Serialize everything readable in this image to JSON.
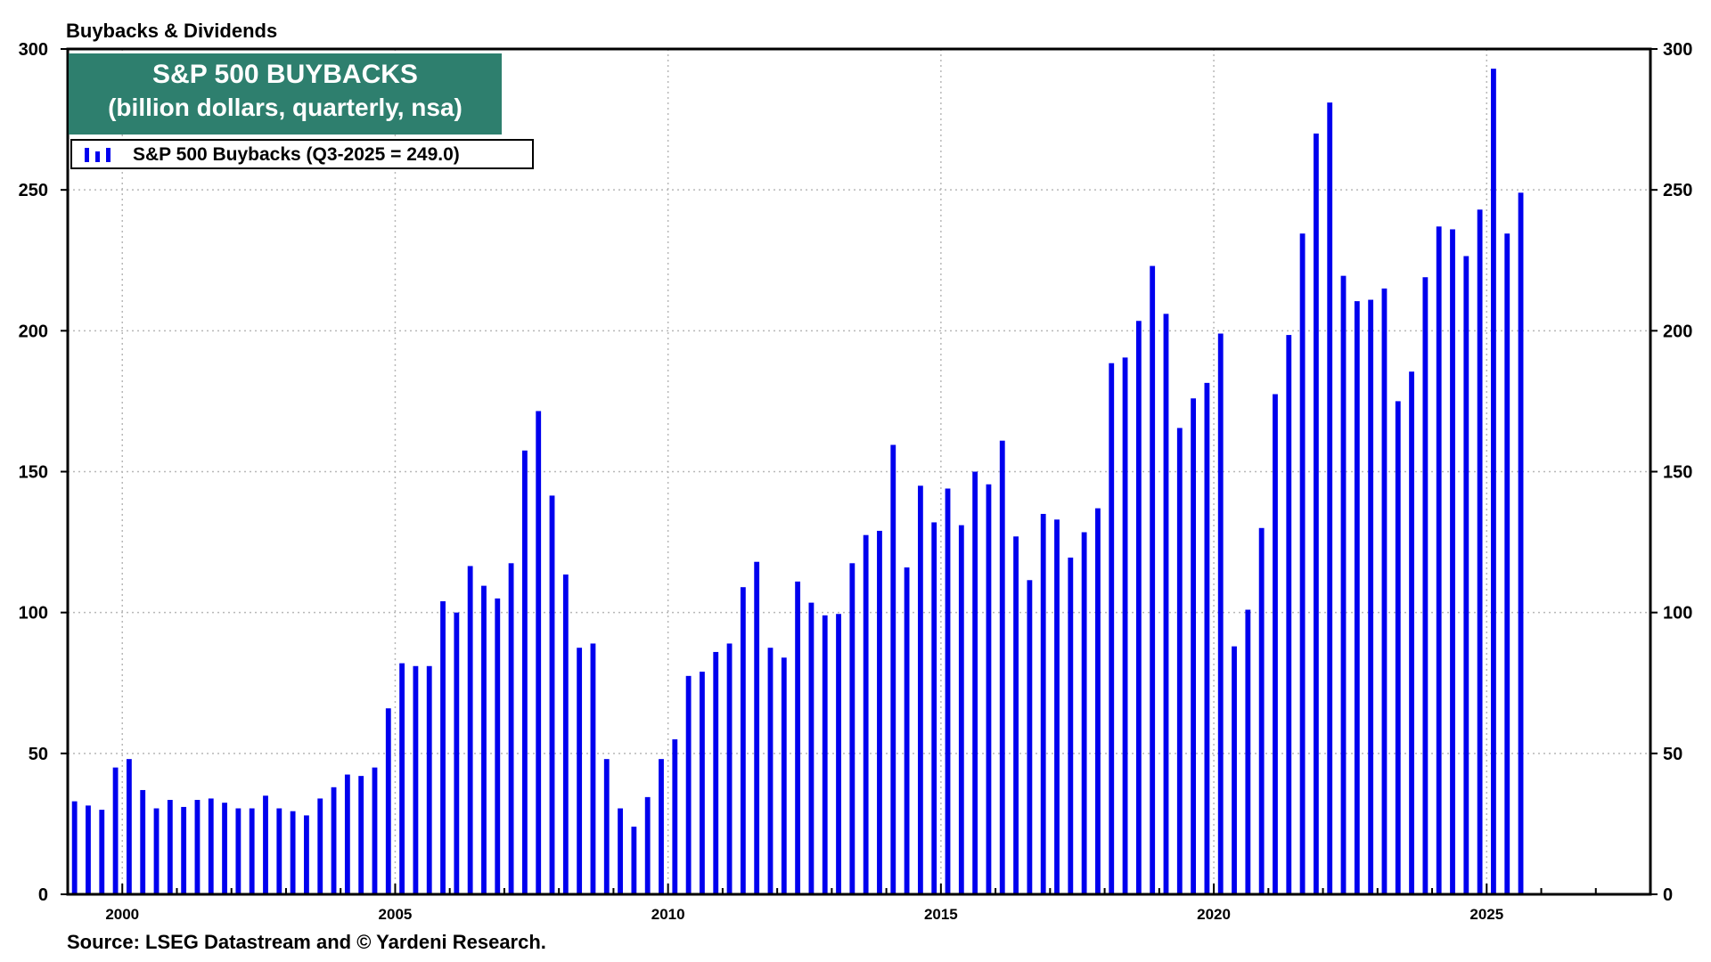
{
  "header": {
    "title": "Buybacks & Dividends"
  },
  "footer": {
    "source": "Source: LSEG Datastream and © Yardeni Research."
  },
  "colors": {
    "bar": "#0000ee",
    "title_box": "#2e7f6e",
    "grid": "#b8b8b8",
    "axis": "#000000"
  },
  "chart_data": {
    "type": "bar",
    "title": "S&P 500 BUYBACKS",
    "subtitle": "(billion dollars, quarterly, nsa)",
    "legend": {
      "label": "S&P 500 Buybacks (Q3-2025 = 249.0)",
      "placement": "top-left"
    },
    "y_axis": {
      "min": 0,
      "max": 300,
      "ticks": [
        0,
        50,
        100,
        150,
        200,
        250,
        300
      ],
      "tick_labels": [
        "0",
        "50",
        "100",
        "150",
        "200",
        "250",
        "300"
      ],
      "sides": "both"
    },
    "x_axis": {
      "min": 1999.0,
      "max": 2028.0,
      "labeled_ticks": [
        2000,
        2005,
        2010,
        2015,
        2020,
        2025
      ],
      "tick_labels": [
        "2000",
        "2005",
        "2010",
        "2015",
        "2020",
        "2025"
      ]
    },
    "grid": true,
    "series": [
      {
        "start": "Q1-1999",
        "values": [
          33,
          31.5,
          30,
          45,
          48,
          37,
          30.5,
          33.5,
          31,
          33.5,
          34,
          32.5,
          30.5,
          30.5,
          35,
          30.5,
          29.5,
          28,
          34,
          38,
          42.5,
          42,
          45,
          66,
          82,
          81,
          81,
          104,
          100,
          116.5,
          109.5,
          105,
          117.5,
          157.5,
          171.5,
          141.5,
          113.5,
          87.5,
          89,
          48,
          30.5,
          24,
          34.5,
          48,
          55,
          77.5,
          79,
          86,
          89,
          109,
          118,
          87.5,
          84,
          111,
          103.5,
          99,
          99.5,
          117.5,
          127.5,
          129,
          159.5,
          116,
          145,
          132,
          144,
          131,
          150,
          145.5,
          161,
          127,
          111.5,
          135,
          133,
          119.5,
          128.5,
          137,
          188.5,
          190.5,
          203.5,
          223,
          206,
          165.5,
          176,
          181.5,
          199,
          88,
          101,
          130,
          177.5,
          198.5,
          234.5,
          270,
          281,
          219.5,
          210.5,
          211,
          215,
          175,
          185.5,
          219,
          237,
          236,
          226.5,
          243,
          293,
          234.5,
          249
        ]
      }
    ]
  }
}
